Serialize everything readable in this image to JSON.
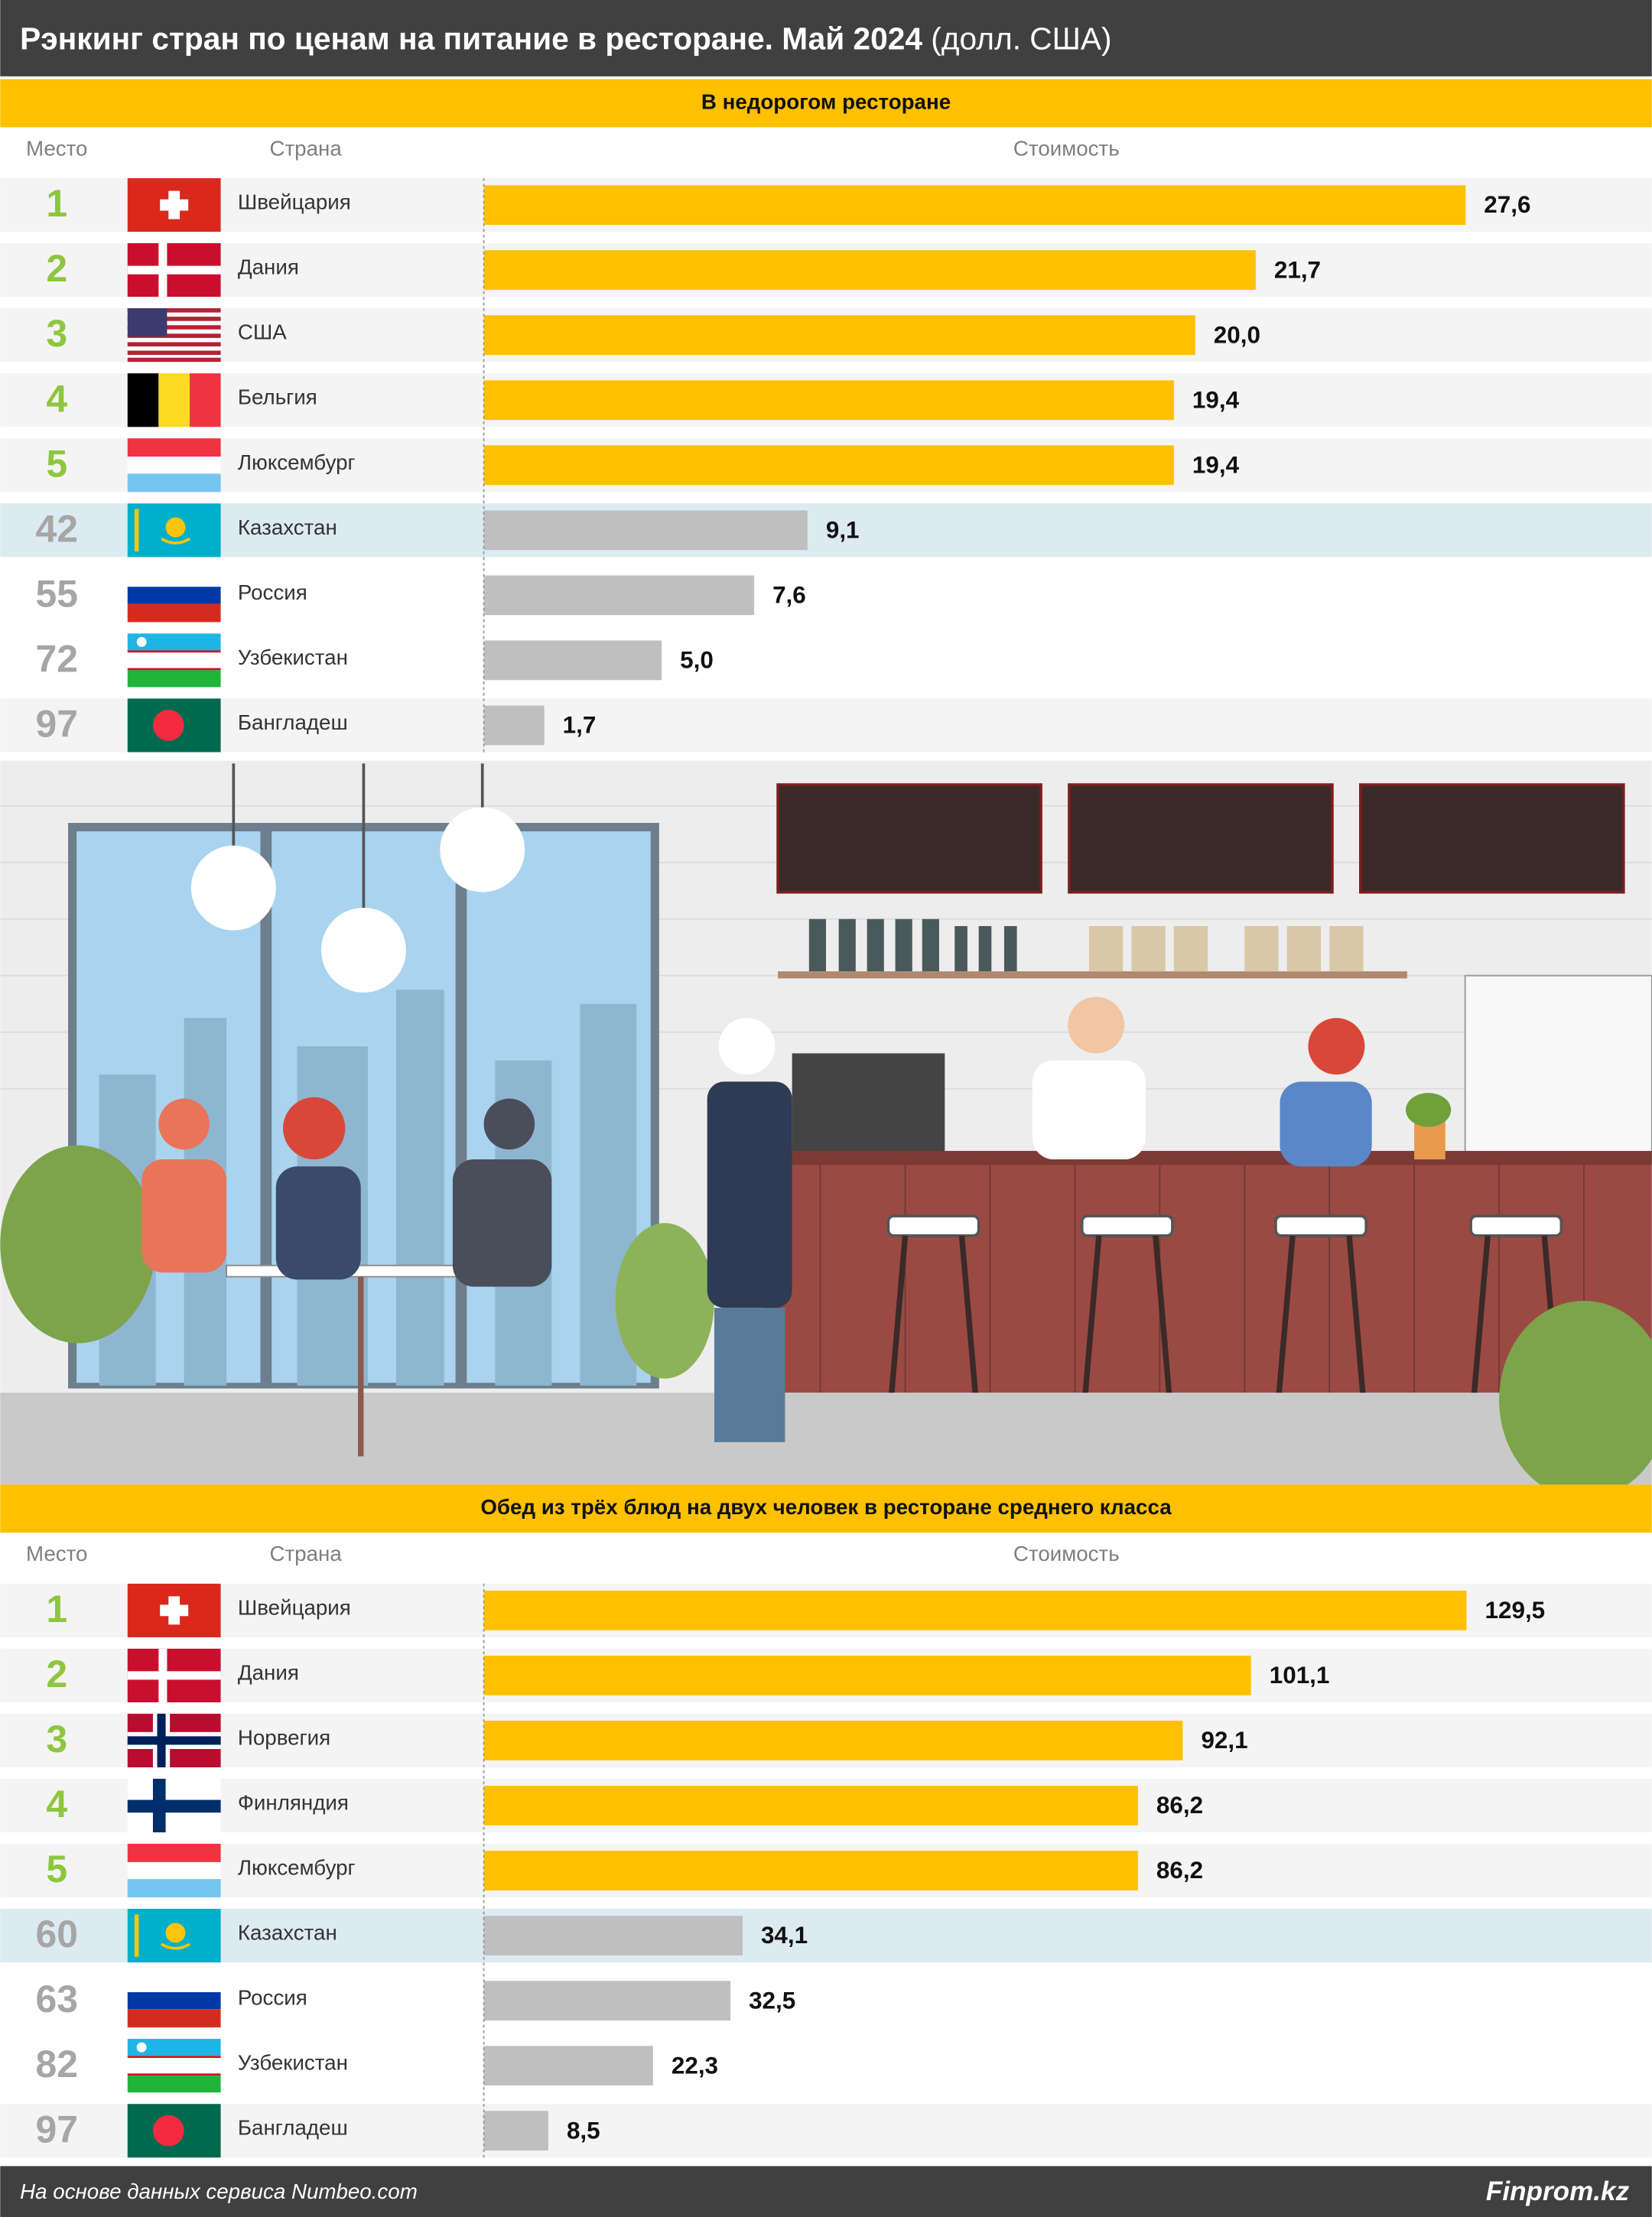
{
  "header": {
    "title": "Рэнкинг стран по ценам на питание в ресторане. Май 2024",
    "unit": "(долл. США)"
  },
  "chart_data": [
    {
      "type": "bar",
      "title": "В недорогом ресторане",
      "columns": [
        "Место",
        "Страна",
        "Стоимость"
      ],
      "ranks": [
        1,
        2,
        3,
        4,
        5,
        42,
        55,
        72,
        97
      ],
      "categories": [
        "Швейцария",
        "Дания",
        "США",
        "Бельгия",
        "Люксембург",
        "Казахстан",
        "Россия",
        "Узбекистан",
        "Бангладеш"
      ],
      "values": [
        27.6,
        21.7,
        20.0,
        19.4,
        19.4,
        9.1,
        7.6,
        5.0,
        1.7
      ],
      "value_labels": [
        "27,6",
        "21,7",
        "20,0",
        "19,4",
        "19,4",
        "9,1",
        "7,6",
        "5,0",
        "1,7"
      ],
      "colors": [
        "#FFC000",
        "#FFC000",
        "#FFC000",
        "#FFC000",
        "#FFC000",
        "#BFBFBF",
        "#BFBFBF",
        "#BFBFBF",
        "#BFBFBF"
      ],
      "rank_colors": [
        "#8DC63F",
        "#8DC63F",
        "#8DC63F",
        "#8DC63F",
        "#8DC63F",
        "#A6A6A6",
        "#A6A6A6",
        "#A6A6A6",
        "#A6A6A6"
      ],
      "row_colors": [
        "#F4F4F4",
        "#F4F4F4",
        "#F4F4F4",
        "#F4F4F4",
        "#F4F4F4",
        "#DCEBF1",
        "#FFFFFF",
        "#FFFFFF",
        "#F4F4F4"
      ],
      "xlim": [
        0,
        32
      ]
    },
    {
      "type": "bar",
      "title": "Обед из трёх блюд на двух человек в ресторане среднего класса",
      "columns": [
        "Место",
        "Страна",
        "Стоимость"
      ],
      "ranks": [
        1,
        2,
        3,
        4,
        5,
        60,
        63,
        82,
        97
      ],
      "categories": [
        "Швейцария",
        "Дания",
        "Норвегия",
        "Финляндия",
        "Люксембург",
        "Казахстан",
        "Россия",
        "Узбекистан",
        "Бангладеш"
      ],
      "values": [
        129.5,
        101.1,
        92.1,
        86.2,
        86.2,
        34.1,
        32.5,
        22.3,
        8.5
      ],
      "value_labels": [
        "129,5",
        "101,1",
        "92,1",
        "86,2",
        "86,2",
        "34,1",
        "32,5",
        "22,3",
        "8,5"
      ],
      "colors": [
        "#FFC000",
        "#FFC000",
        "#FFC000",
        "#FFC000",
        "#FFC000",
        "#BFBFBF",
        "#BFBFBF",
        "#BFBFBF",
        "#BFBFBF"
      ],
      "rank_colors": [
        "#8DC63F",
        "#8DC63F",
        "#8DC63F",
        "#8DC63F",
        "#8DC63F",
        "#A6A6A6",
        "#A6A6A6",
        "#A6A6A6",
        "#A6A6A6"
      ],
      "row_colors": [
        "#F4F4F4",
        "#F4F4F4",
        "#F4F4F4",
        "#F4F4F4",
        "#F4F4F4",
        "#DCEBF1",
        "#FFFFFF",
        "#FFFFFF",
        "#F4F4F4"
      ],
      "xlim": [
        0,
        150
      ]
    }
  ],
  "footer": {
    "source": "На основе данных сервиса Numbeo.com",
    "brand": "Finprom.kz"
  }
}
